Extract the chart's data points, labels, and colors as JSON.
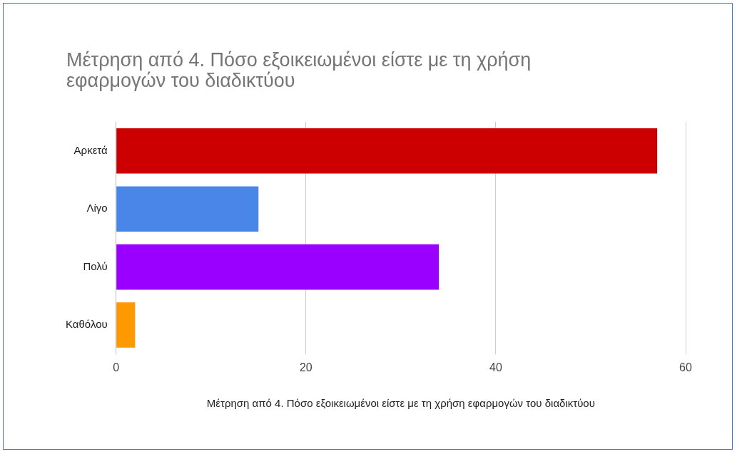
{
  "chart_data": {
    "type": "bar",
    "orientation": "horizontal",
    "title": "Μέτρηση από 4. Πόσο εξοικειωμένοι είστε με τη χρήση εφαρμογών του διαδικτύου",
    "xlabel": "Μέτρηση από 4. Πόσο εξοικειωμένοι είστε με τη χρήση εφαρμογών του διαδικτύου",
    "categories": [
      "Αρκετά",
      "Λίγο",
      "Πολύ",
      "Καθόλου"
    ],
    "values": [
      57,
      15,
      34,
      2
    ],
    "colors": [
      "#cc0000",
      "#4a86e8",
      "#9900ff",
      "#ff9900"
    ],
    "xlim": [
      0,
      60
    ],
    "xticks": [
      0,
      20,
      40,
      60
    ],
    "grid": "x",
    "legend": false
  }
}
